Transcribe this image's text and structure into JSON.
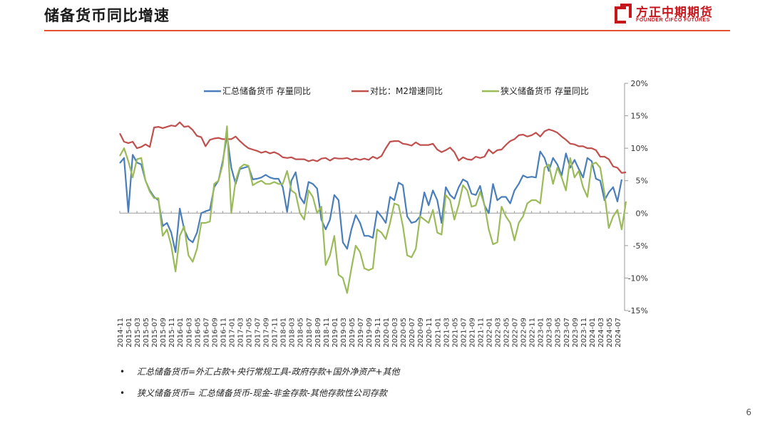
{
  "header": {
    "title": "储备货币同比增速",
    "logo_cn": "方正中期期货",
    "logo_en": "FOUNDER CIFCO FUTURES",
    "accent_color": "#e5542f",
    "brand_color": "#c8161d"
  },
  "notes": [
    {
      "bullet": "•",
      "text": "汇总储备货币=外汇占款+央行常规工具-政府存款+国外净资产+其他"
    },
    {
      "bullet": "•",
      "text": "狭义储备货币= 汇总储备货币-现金-非金存款-其他存款性公司存款"
    }
  ],
  "page_number": "6",
  "chart_data": {
    "type": "line",
    "title": "",
    "xlabel": "",
    "ylabel": "",
    "ylim": [
      -15,
      20
    ],
    "yticks": [
      -15,
      -10,
      -5,
      0,
      5,
      10,
      15,
      20
    ],
    "ytick_labels": [
      "-15%",
      "-10%",
      "-5%",
      "0%",
      "5%",
      "10%",
      "15%",
      "20%"
    ],
    "y_axis_side": "right",
    "grid": false,
    "legend_position": "top",
    "xtick_labels": [
      "2014-11",
      "2015-01",
      "2015-03",
      "2015-05",
      "2015-07",
      "2015-09",
      "2015-11",
      "2016-01",
      "2016-03",
      "2016-05",
      "2016-07",
      "2016-09",
      "2016-11",
      "2017-01",
      "2017-03",
      "2017-05",
      "2017-07",
      "2017-09",
      "2017-11",
      "2018-01",
      "2018-03",
      "2018-05",
      "2018-07",
      "2018-09",
      "2018-11",
      "2019-01",
      "2019-03",
      "2019-05",
      "2019-07",
      "2019-09",
      "2019-11",
      "2020-01",
      "2020-03",
      "2020-05",
      "2020-07",
      "2020-09",
      "2020-11",
      "2021-01",
      "2021-03",
      "2021-05",
      "2021-07",
      "2021-09",
      "2021-11",
      "2022-01",
      "2022-03",
      "2022-05",
      "2022-07",
      "2022-09",
      "2022-11",
      "2023-01",
      "2023-03",
      "2023-05",
      "2023-07",
      "2023-09",
      "2023-11",
      "2024-01",
      "2024-03",
      "2024-05",
      "2024-07"
    ],
    "x_start": "2014-11",
    "x_end": "2024-07",
    "x_frequency": "monthly",
    "series": [
      {
        "name": "汇总储备货币 存量同比",
        "color": "#4a7ebb",
        "values": [
          7.7,
          8.5,
          0.2,
          9.0,
          7.8,
          7.5,
          5.0,
          3.5,
          2.5,
          2.0,
          -2.0,
          -1.5,
          -3.0,
          -6.0,
          0.7,
          -2.5,
          -4.0,
          -4.5,
          -3.0,
          0.0,
          0.3,
          0.5,
          4.0,
          5.0,
          8.0,
          12.0,
          7.0,
          4.5,
          6.8,
          7.0,
          7.2,
          5.2,
          5.3,
          5.5,
          5.9,
          5.5,
          5.3,
          5.3,
          4.0,
          0.2,
          5.0,
          6.3,
          2.5,
          1.5,
          4.8,
          4.5,
          3.8,
          -1.0,
          -2.5,
          -1.0,
          2.8,
          2.0,
          -4.5,
          -5.5,
          -2.5,
          -0.3,
          -1.5,
          -3.5,
          -3.5,
          -3.8,
          0.3,
          -0.5,
          -1.5,
          2.5,
          2.0,
          4.7,
          4.3,
          -0.5,
          -1.5,
          -1.3,
          -0.5,
          3.2,
          1.2,
          3.5,
          2.0,
          -1.5,
          4.0,
          2.8,
          2.2,
          4.0,
          5.2,
          4.8,
          3.0,
          2.8,
          4.2,
          1.2,
          0.0,
          4.5,
          2.0,
          2.5,
          2.5,
          1.5,
          3.5,
          4.5,
          5.8,
          5.5,
          5.6,
          5.5,
          9.5,
          8.5,
          6.5,
          8.5,
          7.5,
          5.8,
          9.2,
          7.0,
          8.2,
          6.8,
          5.5,
          8.5,
          8.0,
          5.3,
          5.0,
          2.0,
          3.2,
          4.0,
          1.8,
          5.2
        ]
      },
      {
        "name": "对比：M2增速同比",
        "color": "#c0504d",
        "values": [
          12.3,
          11.0,
          10.8,
          11.0,
          10.0,
          10.2,
          10.6,
          10.2,
          13.2,
          13.3,
          13.1,
          13.3,
          13.5,
          13.4,
          14.0,
          13.3,
          13.4,
          12.8,
          11.9,
          11.7,
          10.3,
          11.3,
          11.5,
          11.6,
          11.4,
          11.4,
          11.4,
          11.8,
          11.1,
          10.5,
          10.0,
          9.8,
          9.6,
          9.3,
          9.5,
          9.2,
          9.4,
          9.1,
          8.6,
          8.5,
          8.6,
          8.3,
          8.3,
          8.3,
          8.0,
          8.2,
          8.0,
          8.4,
          8.5,
          8.1,
          8.5,
          8.4,
          8.4,
          8.5,
          8.2,
          8.4,
          8.2,
          8.4,
          8.2,
          8.7,
          8.4,
          8.8,
          10.0,
          11.0,
          11.1,
          11.1,
          10.7,
          10.6,
          10.4,
          10.9,
          10.5,
          10.5,
          10.5,
          10.7,
          9.8,
          9.4,
          9.7,
          10.1,
          9.4,
          8.1,
          8.6,
          8.3,
          8.2,
          8.7,
          8.5,
          8.7,
          9.8,
          9.2,
          9.7,
          9.8,
          10.5,
          11.1,
          11.4,
          12.0,
          12.1,
          11.8,
          12.0,
          12.4,
          11.8,
          12.6,
          12.9,
          12.7,
          12.4,
          11.8,
          11.3,
          10.7,
          10.6,
          10.3,
          10.3,
          10.0,
          10.0,
          9.7,
          8.7,
          8.7,
          8.3,
          7.2,
          7.0,
          6.2,
          6.3
        ]
      },
      {
        "name": "狭义储备货币 存量同比",
        "color": "#9bbb59",
        "values": [
          8.8,
          10.0,
          8.0,
          5.5,
          8.3,
          8.5,
          5.0,
          3.3,
          2.3,
          2.3,
          -3.5,
          -2.5,
          -5.0,
          -9.0,
          -3.5,
          -2.0,
          -6.5,
          -7.5,
          -5.5,
          -1.5,
          -1.5,
          -1.3,
          4.5,
          5.0,
          7.5,
          13.4,
          0.0,
          5.0,
          7.0,
          7.5,
          7.3,
          4.3,
          4.7,
          5.0,
          4.5,
          4.5,
          4.8,
          4.5,
          4.5,
          6.5,
          3.5,
          3.0,
          0.0,
          -1.0,
          3.5,
          2.5,
          0.0,
          1.0,
          -8.0,
          -6.5,
          -3.5,
          -9.5,
          -10.0,
          -12.3,
          -8.5,
          -5.0,
          -6.0,
          -8.5,
          -8.8,
          -8.5,
          -2.5,
          -3.0,
          -4.0,
          -1.5,
          1.5,
          1.2,
          -2.0,
          -6.5,
          -6.8,
          -5.5,
          -0.5,
          -1.0,
          -1.5,
          0.5,
          -3.0,
          -3.3,
          2.8,
          2.0,
          -1.0,
          1.3,
          4.3,
          3.5,
          1.0,
          1.2,
          3.3,
          1.3,
          -2.5,
          -4.8,
          -4.5,
          1.0,
          -0.5,
          -1.5,
          -4.2,
          -1.5,
          -0.5,
          1.5,
          2.0,
          2.0,
          1.5,
          7.0,
          7.5,
          4.5,
          7.0,
          5.5,
          3.5,
          8.5,
          5.5,
          6.5,
          4.0,
          2.5,
          7.5,
          7.8,
          7.0,
          3.0,
          -2.3,
          -0.5,
          0.5,
          -2.5,
          1.8
        ]
      }
    ]
  }
}
